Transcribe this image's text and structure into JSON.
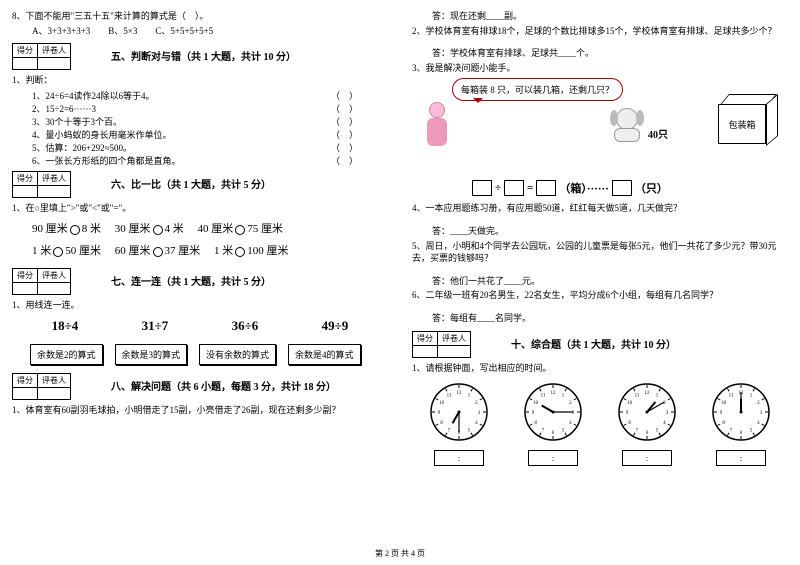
{
  "left": {
    "q8": "8、下面不能用\"三五十五\"来计算的算式是（　）。",
    "q8_opts": "A、3+3+3+3+3　　B、5×3　　C、5+5+5+5+5",
    "score_header1": "得分",
    "score_header2": "评卷人",
    "sec5_title": "五、判断对与错（共 1 大题，共计 10 分）",
    "sec5_q": "1、判断：",
    "sec5_items": [
      "1、24÷6=4读作24除以6等于4。",
      "2、15÷2=6······3",
      "3、30个十等于3个百。",
      "4、量小蚂蚁的身长用毫米作单位。",
      "5、估算：206+292≈500。",
      "6、一张长方形纸的四个角都是直角。"
    ],
    "tf_mark": "（　）",
    "sec6_title": "六、比一比（共 1 大题，共计 5 分）",
    "sec6_q": "1、在○里填上\">\"或\"<\"或\"=\"。",
    "compare": [
      [
        "90 厘米",
        "8 米",
        "30 厘米",
        "4 米",
        "40 厘米",
        "75 厘米"
      ],
      [
        "1 米",
        "50 厘米",
        "60 厘米",
        "37 厘米",
        "1 米",
        "100 厘米"
      ]
    ],
    "sec7_title": "七、连一连（共 1 大题，共计 5 分）",
    "sec7_q": "1、用线连一连。",
    "divisions": [
      "18÷4",
      "31÷7",
      "36÷6",
      "49÷9"
    ],
    "remainder_boxes": [
      "余数是2的算式",
      "余数是3的算式",
      "没有余数的算式",
      "余数是4的算式"
    ],
    "sec8_title": "八、解决问题（共 6 小题，每题 3 分，共计 18 分）",
    "sec8_q1": "1、体育室有60副羽毛球拍，小明借走了15副，小亮借走了26副，现在还剩多少副？"
  },
  "right": {
    "a1": "答：现在还剩____副。",
    "q2": "2、学校体育室有排球18个，足球的个数比排球多15个，学校体育室有排球、足球共多少个？",
    "a2": "答：学校体育室有排球、足球共____个。",
    "q3": "3、我是解决问题小能手。",
    "speech": "每箱装 8 只，可以装几箱，还剩几只？",
    "count40": "40只",
    "box_label": "包装箱",
    "eq_unit1": "（箱）······",
    "eq_unit2": "（只）",
    "q4": "4、一本应用题练习册，有应用题50道，红红每天做5道，几天做完？",
    "a4": "答：____天做完。",
    "q5": "5、周日，小明和4个同学去公园玩，公园的儿童票是每张5元，他们一共花了多少元？带30元去，买票的钱够吗？",
    "a5": "答：他们一共花了____元。",
    "q6": "6、二年级一班有20名男生，22名女生，平均分成6个小组，每组有几名同学？",
    "a6": "答：每组有____名同学。",
    "sec10_title": "十、综合题（共 1 大题，共计 10 分）",
    "sec10_q": "1、请根据钟面，写出相应的时间。",
    "clocks": [
      {
        "hour_angle": 210,
        "min_angle": 180
      },
      {
        "hour_angle": 300,
        "min_angle": 90
      },
      {
        "hour_angle": 40,
        "min_angle": 60
      },
      {
        "hour_angle": 0,
        "min_angle": 0
      }
    ],
    "time_label": ":"
  },
  "footer": "第 2 页 共 4 页"
}
